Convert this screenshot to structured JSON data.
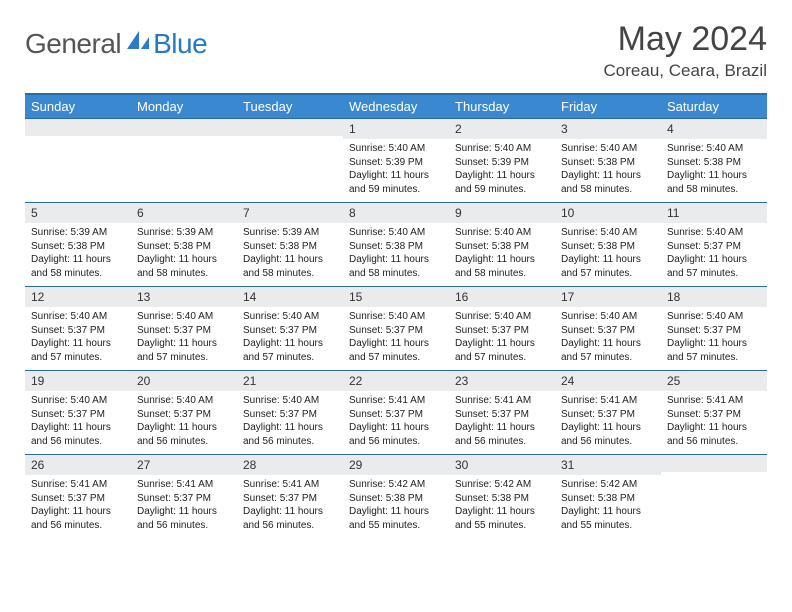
{
  "logo": {
    "text1": "General",
    "text2": "Blue",
    "icon_color": "#2b7bc9"
  },
  "header": {
    "title": "May 2024",
    "location": "Coreau, Ceara, Brazil"
  },
  "colors": {
    "header_bg": "#3a89d0",
    "header_border": "#2b6aa5",
    "daynum_bg": "#e9ebec"
  },
  "day_labels": [
    "Sunday",
    "Monday",
    "Tuesday",
    "Wednesday",
    "Thursday",
    "Friday",
    "Saturday"
  ],
  "weeks": [
    [
      null,
      null,
      null,
      {
        "n": "1",
        "sr": "5:40 AM",
        "ss": "5:39 PM",
        "dl": "11 hours and 59 minutes."
      },
      {
        "n": "2",
        "sr": "5:40 AM",
        "ss": "5:39 PM",
        "dl": "11 hours and 59 minutes."
      },
      {
        "n": "3",
        "sr": "5:40 AM",
        "ss": "5:38 PM",
        "dl": "11 hours and 58 minutes."
      },
      {
        "n": "4",
        "sr": "5:40 AM",
        "ss": "5:38 PM",
        "dl": "11 hours and 58 minutes."
      }
    ],
    [
      {
        "n": "5",
        "sr": "5:39 AM",
        "ss": "5:38 PM",
        "dl": "11 hours and 58 minutes."
      },
      {
        "n": "6",
        "sr": "5:39 AM",
        "ss": "5:38 PM",
        "dl": "11 hours and 58 minutes."
      },
      {
        "n": "7",
        "sr": "5:39 AM",
        "ss": "5:38 PM",
        "dl": "11 hours and 58 minutes."
      },
      {
        "n": "8",
        "sr": "5:40 AM",
        "ss": "5:38 PM",
        "dl": "11 hours and 58 minutes."
      },
      {
        "n": "9",
        "sr": "5:40 AM",
        "ss": "5:38 PM",
        "dl": "11 hours and 58 minutes."
      },
      {
        "n": "10",
        "sr": "5:40 AM",
        "ss": "5:38 PM",
        "dl": "11 hours and 57 minutes."
      },
      {
        "n": "11",
        "sr": "5:40 AM",
        "ss": "5:37 PM",
        "dl": "11 hours and 57 minutes."
      }
    ],
    [
      {
        "n": "12",
        "sr": "5:40 AM",
        "ss": "5:37 PM",
        "dl": "11 hours and 57 minutes."
      },
      {
        "n": "13",
        "sr": "5:40 AM",
        "ss": "5:37 PM",
        "dl": "11 hours and 57 minutes."
      },
      {
        "n": "14",
        "sr": "5:40 AM",
        "ss": "5:37 PM",
        "dl": "11 hours and 57 minutes."
      },
      {
        "n": "15",
        "sr": "5:40 AM",
        "ss": "5:37 PM",
        "dl": "11 hours and 57 minutes."
      },
      {
        "n": "16",
        "sr": "5:40 AM",
        "ss": "5:37 PM",
        "dl": "11 hours and 57 minutes."
      },
      {
        "n": "17",
        "sr": "5:40 AM",
        "ss": "5:37 PM",
        "dl": "11 hours and 57 minutes."
      },
      {
        "n": "18",
        "sr": "5:40 AM",
        "ss": "5:37 PM",
        "dl": "11 hours and 57 minutes."
      }
    ],
    [
      {
        "n": "19",
        "sr": "5:40 AM",
        "ss": "5:37 PM",
        "dl": "11 hours and 56 minutes."
      },
      {
        "n": "20",
        "sr": "5:40 AM",
        "ss": "5:37 PM",
        "dl": "11 hours and 56 minutes."
      },
      {
        "n": "21",
        "sr": "5:40 AM",
        "ss": "5:37 PM",
        "dl": "11 hours and 56 minutes."
      },
      {
        "n": "22",
        "sr": "5:41 AM",
        "ss": "5:37 PM",
        "dl": "11 hours and 56 minutes."
      },
      {
        "n": "23",
        "sr": "5:41 AM",
        "ss": "5:37 PM",
        "dl": "11 hours and 56 minutes."
      },
      {
        "n": "24",
        "sr": "5:41 AM",
        "ss": "5:37 PM",
        "dl": "11 hours and 56 minutes."
      },
      {
        "n": "25",
        "sr": "5:41 AM",
        "ss": "5:37 PM",
        "dl": "11 hours and 56 minutes."
      }
    ],
    [
      {
        "n": "26",
        "sr": "5:41 AM",
        "ss": "5:37 PM",
        "dl": "11 hours and 56 minutes."
      },
      {
        "n": "27",
        "sr": "5:41 AM",
        "ss": "5:37 PM",
        "dl": "11 hours and 56 minutes."
      },
      {
        "n": "28",
        "sr": "5:41 AM",
        "ss": "5:37 PM",
        "dl": "11 hours and 56 minutes."
      },
      {
        "n": "29",
        "sr": "5:42 AM",
        "ss": "5:38 PM",
        "dl": "11 hours and 55 minutes."
      },
      {
        "n": "30",
        "sr": "5:42 AM",
        "ss": "5:38 PM",
        "dl": "11 hours and 55 minutes."
      },
      {
        "n": "31",
        "sr": "5:42 AM",
        "ss": "5:38 PM",
        "dl": "11 hours and 55 minutes."
      },
      null
    ]
  ],
  "labels": {
    "sunrise": "Sunrise:",
    "sunset": "Sunset:",
    "daylight": "Daylight:"
  }
}
